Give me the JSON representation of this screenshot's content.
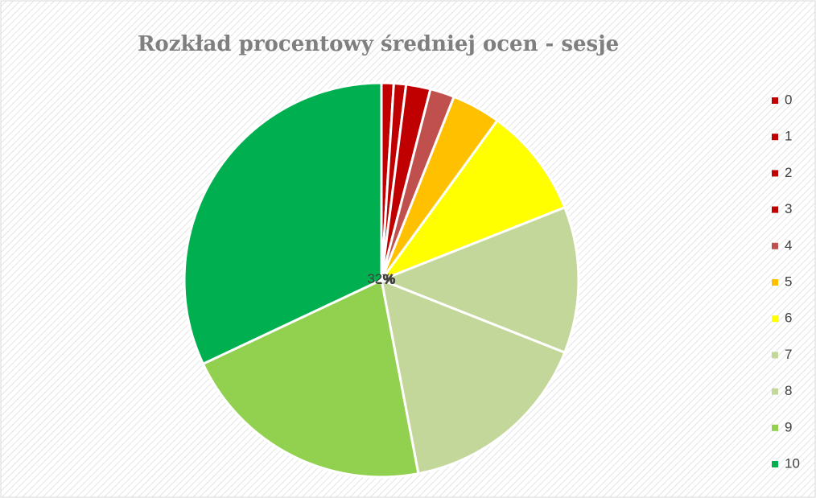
{
  "chart_data": {
    "type": "pie",
    "title": "Rozkład procentowy średniej ocen - sesje",
    "categories": [
      "0",
      "1",
      "2",
      "3",
      "4",
      "5",
      "6",
      "7",
      "8",
      "9",
      "10"
    ],
    "values": [
      0,
      1,
      1,
      2,
      2,
      4,
      9,
      12,
      16,
      21,
      32
    ],
    "value_labels": [
      null,
      "1%",
      "1%",
      "2%",
      "2%",
      "4%",
      "9%",
      "12%",
      "16%",
      "21%",
      "32%"
    ],
    "colors": [
      "#c00000",
      "#c00000",
      "#c00000",
      "#c00000",
      "#c0504d",
      "#ffc000",
      "#ffff00",
      "#c4d79b",
      "#c4d79b",
      "#92d050",
      "#00b050"
    ],
    "legend": "right"
  }
}
